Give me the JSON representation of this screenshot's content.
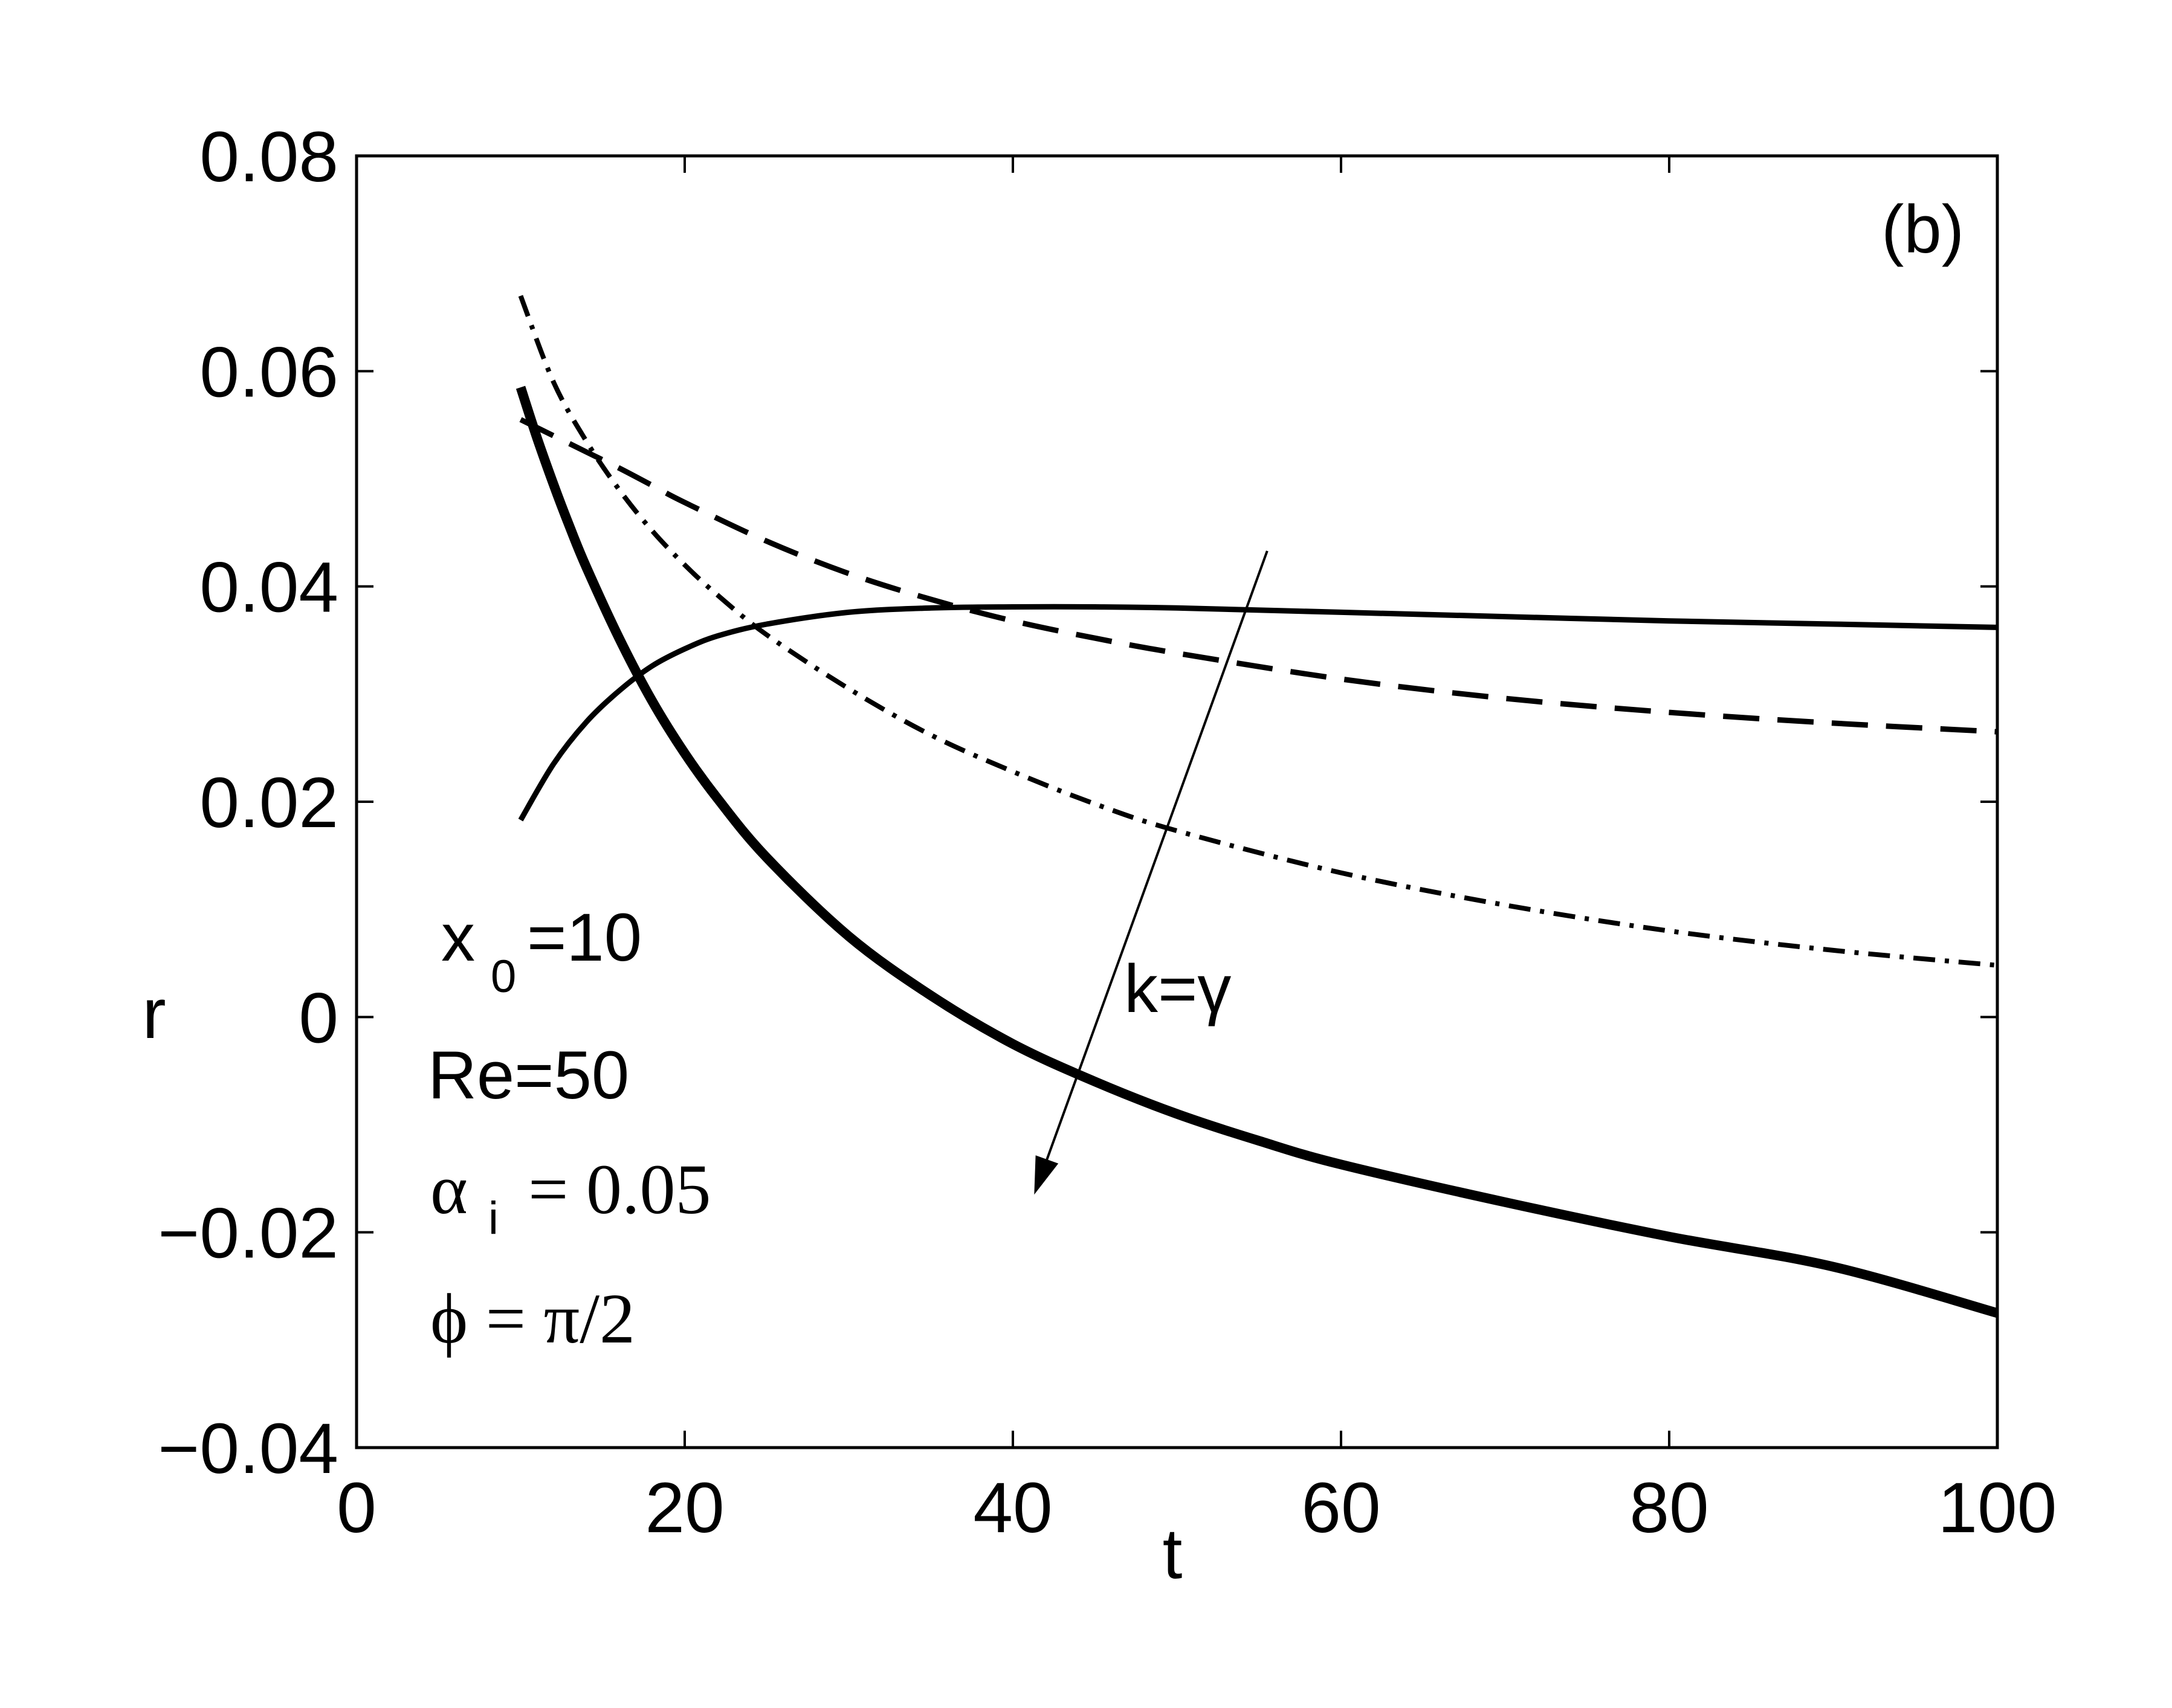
{
  "chart_data": {
    "type": "line",
    "panel_label": "(b)",
    "xlabel": "t",
    "ylabel": "r",
    "xlim": [
      0,
      100
    ],
    "ylim": [
      -0.04,
      0.08
    ],
    "xticks": [
      "0",
      "20",
      "40",
      "60",
      "80",
      "100"
    ],
    "yticks": [
      "−0.04",
      "−0.02",
      "0",
      "0.02",
      "0.04",
      "0.06",
      "0.08"
    ],
    "xtick_values": [
      0,
      20,
      40,
      60,
      80,
      100
    ],
    "ytick_values": [
      -0.04,
      -0.02,
      0,
      0.02,
      0.04,
      0.06,
      0.08
    ],
    "grid": false,
    "series": [
      {
        "style": "solid-thin",
        "x": [
          10,
          12,
          14,
          16,
          18,
          20,
          22,
          25,
          30,
          35,
          40,
          45,
          50,
          60,
          70,
          80,
          90,
          100
        ],
        "y": [
          0.0183,
          0.0235,
          0.0274,
          0.0303,
          0.0326,
          0.0342,
          0.0354,
          0.0365,
          0.0376,
          0.038,
          0.0381,
          0.0381,
          0.038,
          0.0376,
          0.0372,
          0.0368,
          0.0365,
          0.0362
        ]
      },
      {
        "style": "dashed",
        "x": [
          10,
          12,
          14,
          16,
          18,
          20,
          25,
          30,
          35,
          40,
          45,
          50,
          60,
          70,
          80,
          90,
          100
        ],
        "y": [
          0.0555,
          0.054,
          0.0525,
          0.051,
          0.0494,
          0.0478,
          0.0442,
          0.0412,
          0.0388,
          0.0368,
          0.0352,
          0.0338,
          0.0314,
          0.0296,
          0.0283,
          0.0273,
          0.0265
        ]
      },
      {
        "style": "dash-dot",
        "x": [
          10,
          12,
          14,
          16,
          18,
          20,
          22,
          25,
          30,
          35,
          40,
          45,
          50,
          60,
          70,
          80,
          90,
          100
        ],
        "y": [
          0.067,
          0.059,
          0.0535,
          0.049,
          0.0452,
          0.042,
          0.0392,
          0.0355,
          0.0305,
          0.0262,
          0.0228,
          0.0198,
          0.0173,
          0.0134,
          0.0104,
          0.008,
          0.0062,
          0.0048
        ]
      },
      {
        "style": "solid-thick",
        "x": [
          10,
          11,
          12,
          13,
          14,
          16,
          18,
          20,
          22,
          25,
          30,
          35,
          40,
          45,
          50,
          55,
          60,
          70,
          80,
          90,
          100
        ],
        "y": [
          0.0585,
          0.0538,
          0.0495,
          0.0455,
          0.0418,
          0.0352,
          0.0294,
          0.0245,
          0.0203,
          0.0148,
          0.0075,
          0.002,
          -0.0025,
          -0.006,
          -0.009,
          -0.0115,
          -0.0137,
          -0.0172,
          -0.0204,
          -0.0232,
          -0.0275
        ]
      }
    ],
    "arrow": {
      "from": [
        55.5,
        0.0433
      ],
      "to": [
        41.3,
        -0.0165
      ]
    },
    "annotations": {
      "k_gamma": "k=γ",
      "x0_main": "x",
      "x0_sub": "0",
      "x0_value": "=10",
      "re": "Re=50",
      "alpha_main": "α",
      "alpha_sub": "i",
      "alpha_value": "= 0.05",
      "phi": "ϕ = π/2"
    }
  }
}
